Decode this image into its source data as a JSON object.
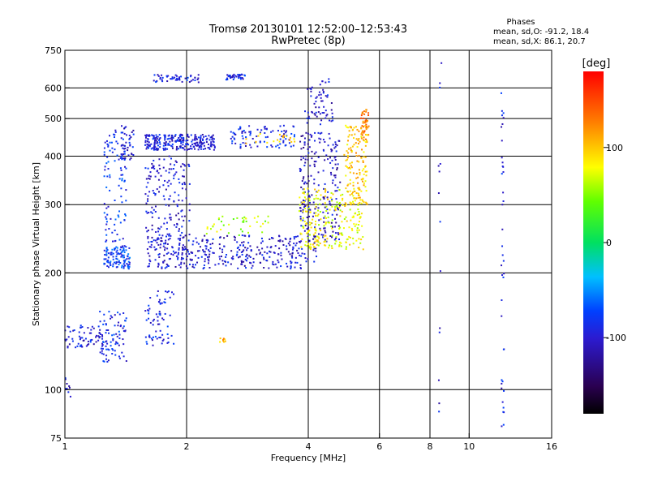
{
  "chart_data": {
    "type": "scatter",
    "title": "Tromsø 20130101 12:52:00–12:53:43",
    "subtitle": "RwPretec (8p)",
    "xlabel": "Frequency [MHz]",
    "ylabel": "Stationary phase Virtual Height [km]",
    "xscale": "log",
    "yscale": "log",
    "xlim": [
      1,
      16
    ],
    "ylim": [
      75,
      750
    ],
    "x_ticks": [
      1,
      2,
      4,
      6,
      8,
      10,
      16
    ],
    "y_ticks": [
      75,
      100,
      200,
      300,
      400,
      500,
      600,
      750
    ],
    "x_gridlines": [
      2,
      4,
      6,
      8,
      10
    ],
    "y_gridlines": [
      100,
      200,
      300,
      400,
      500,
      600
    ],
    "grid": true,
    "stats": {
      "header": "Phases",
      "line_O": "mean, sd,O: -91.2, 18.4",
      "line_X": "mean, sd,X:  86.1, 20.7"
    },
    "colorbar": {
      "label": "[deg]",
      "ticks": [
        100,
        0,
        -100
      ],
      "range": [
        -180,
        180
      ]
    },
    "clusters": [
      {
        "x": [
          1.0,
          1.05
        ],
        "y": [
          95,
          108
        ],
        "phase": -100,
        "n": 10
      },
      {
        "x": [
          1.0,
          1.22
        ],
        "y": [
          128,
          147
        ],
        "phase": -95,
        "n": 60
      },
      {
        "x": [
          1.22,
          1.42
        ],
        "y": [
          118,
          160
        ],
        "phase": -85,
        "n": 90
      },
      {
        "x": [
          1.25,
          1.45
        ],
        "y": [
          205,
          235
        ],
        "phase": -75,
        "n": 110
      },
      {
        "x": [
          1.25,
          1.42
        ],
        "y": [
          240,
          470
        ],
        "phase": -80,
        "n": 100
      },
      {
        "x": [
          1.38,
          1.48
        ],
        "y": [
          390,
          480
        ],
        "phase": -95,
        "n": 40
      },
      {
        "x": [
          1.58,
          1.86
        ],
        "y": [
          130,
          180
        ],
        "phase": -90,
        "n": 70
      },
      {
        "x": [
          1.58,
          2.35
        ],
        "y": [
          415,
          455
        ],
        "phase": -95,
        "n": 260
      },
      {
        "x": [
          1.58,
          2.05
        ],
        "y": [
          240,
          400
        ],
        "phase": -100,
        "n": 160
      },
      {
        "x": [
          1.65,
          2.15
        ],
        "y": [
          620,
          650
        ],
        "phase": -90,
        "n": 50
      },
      {
        "x": [
          2.5,
          2.8
        ],
        "y": [
          630,
          650
        ],
        "phase": -90,
        "n": 40
      },
      {
        "x": [
          2.55,
          3.7
        ],
        "y": [
          420,
          480
        ],
        "phase": -90,
        "n": 90
      },
      {
        "x": [
          2.8,
          3.9
        ],
        "y": [
          430,
          460
        ],
        "phase": 100,
        "n": 20
      },
      {
        "x": [
          1.6,
          4.2
        ],
        "y": [
          205,
          250
        ],
        "phase": -100,
        "n": 380
      },
      {
        "x": [
          3.8,
          4.8
        ],
        "y": [
          240,
          460
        ],
        "phase": -105,
        "n": 220
      },
      {
        "x": [
          3.9,
          4.65
        ],
        "y": [
          480,
          640
        ],
        "phase": -100,
        "n": 60
      },
      {
        "x": [
          2.2,
          3.2
        ],
        "y": [
          250,
          280
        ],
        "phase": 60,
        "n": 40
      },
      {
        "x": [
          3.8,
          5.5
        ],
        "y": [
          230,
          330
        ],
        "phase": 80,
        "n": 240
      },
      {
        "x": [
          4.9,
          5.6
        ],
        "y": [
          300,
          480
        ],
        "phase": 100,
        "n": 140
      },
      {
        "x": [
          5.4,
          5.65
        ],
        "y": [
          440,
          530
        ],
        "phase": 130,
        "n": 40
      },
      {
        "x": [
          2.4,
          2.5
        ],
        "y": [
          132,
          136
        ],
        "phase": 110,
        "n": 8
      },
      {
        "x": [
          8.4,
          8.55
        ],
        "y": [
          80,
          720
        ],
        "phase": -100,
        "n": 14
      },
      {
        "x": [
          12.0,
          12.2
        ],
        "y": [
          78,
          620
        ],
        "phase": -95,
        "n": 40
      }
    ]
  }
}
